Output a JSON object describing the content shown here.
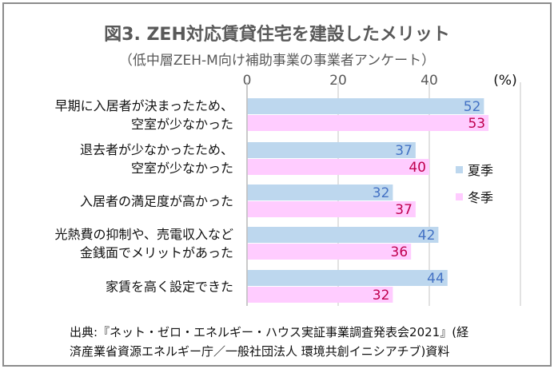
{
  "chart_data": {
    "type": "bar",
    "orientation": "horizontal",
    "title": "図3. ZEH対応賃貸住宅を建設したメリット",
    "subtitle": "（低中層ZEH-M向け補助事業の事業者アンケート）",
    "categories": [
      "早期に入居者が決まったため、\n空室が少なかった",
      "退去者が少なかったため、\n空室が少なかった",
      "入居者の満足度が高かった",
      "光熱費の抑制や、売電収入など\n金銭面でメリットがあった",
      "家賃を高く設定できた"
    ],
    "series": [
      {
        "name": "夏季",
        "values": [
          52,
          37,
          32,
          42,
          44
        ],
        "color": "#bdd7ee",
        "label_color": "#4472c4"
      },
      {
        "name": "冬季",
        "values": [
          53,
          40,
          37,
          36,
          32
        ],
        "color": "#ffccff",
        "label_color": "#c0004f"
      }
    ],
    "xlim": [
      0,
      60
    ],
    "xticks": [
      0,
      20,
      40
    ],
    "x_unit": "(%)",
    "grid": true,
    "legend": "right"
  },
  "source": [
    "出典:『ネット・ゼロ・エネルギー・ハウス実証事業調査発表会2021』(経",
    "済産業省資源エネルギー庁／一般社団法人 環境共創イニシアチブ)資料"
  ]
}
